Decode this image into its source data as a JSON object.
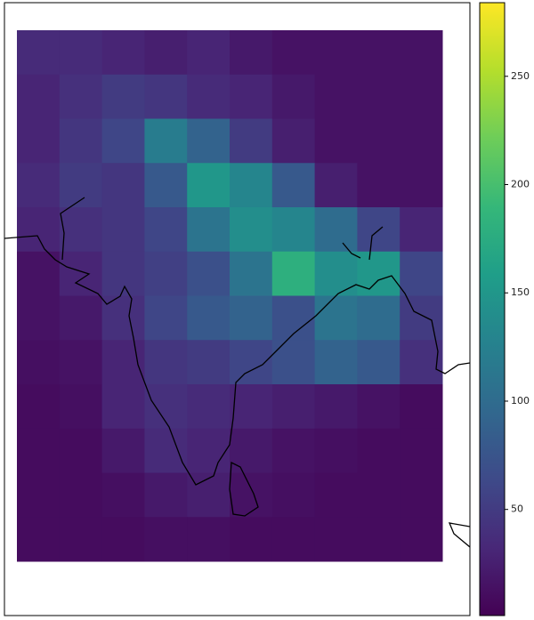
{
  "chart_data": {
    "type": "heatmap",
    "colormap": "viridis",
    "clim": [
      1,
      284
    ],
    "cticks": [
      50,
      100,
      150,
      200,
      250
    ],
    "values": [
      [
        35,
        35,
        30,
        25,
        30,
        20,
        15,
        15,
        15,
        15
      ],
      [
        30,
        40,
        50,
        45,
        35,
        30,
        20,
        15,
        15,
        15
      ],
      [
        30,
        45,
        60,
        120,
        90,
        50,
        25,
        15,
        15,
        15
      ],
      [
        35,
        50,
        45,
        80,
        150,
        130,
        80,
        25,
        15,
        15
      ],
      [
        30,
        40,
        45,
        60,
        110,
        140,
        130,
        100,
        60,
        30
      ],
      [
        15,
        30,
        45,
        55,
        70,
        110,
        180,
        140,
        150,
        60
      ],
      [
        15,
        20,
        40,
        60,
        80,
        90,
        70,
        110,
        100,
        50
      ],
      [
        12,
        15,
        30,
        45,
        50,
        60,
        70,
        90,
        80,
        40
      ],
      [
        10,
        12,
        30,
        40,
        35,
        30,
        25,
        20,
        15,
        10
      ],
      [
        10,
        10,
        20,
        35,
        30,
        20,
        15,
        12,
        10,
        10
      ],
      [
        10,
        10,
        12,
        20,
        25,
        15,
        12,
        10,
        10,
        10
      ],
      [
        10,
        10,
        10,
        12,
        12,
        10,
        10,
        10,
        10,
        10
      ]
    ]
  }
}
